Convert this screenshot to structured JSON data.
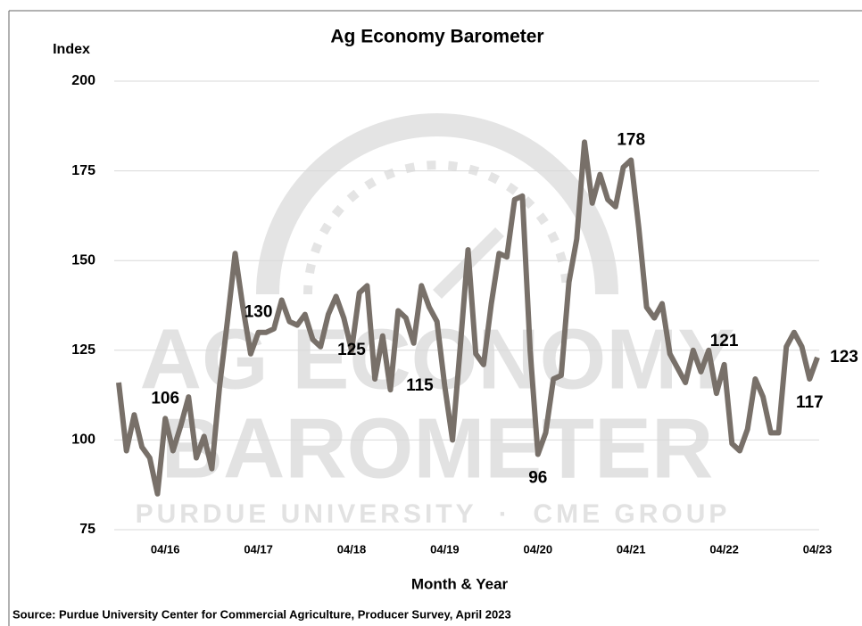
{
  "chart_data": {
    "type": "line",
    "title": "Ag Economy Barometer",
    "y_label": "Index",
    "x_label": "Month & Year",
    "source": "Source: Purdue University Center for Commercial Agriculture, Producer Survey, April 2023",
    "watermark": [
      "AG ECONOMY",
      "BAROMETER",
      "PURDUE UNIVERSITY  ·  CME GROUP"
    ],
    "categories": [
      null,
      null,
      null,
      null,
      null,
      null,
      "04/16",
      null,
      null,
      null,
      null,
      null,
      null,
      null,
      null,
      null,
      null,
      null,
      "04/17",
      null,
      null,
      null,
      null,
      null,
      null,
      null,
      null,
      null,
      null,
      null,
      "04/18",
      null,
      null,
      null,
      null,
      null,
      null,
      null,
      null,
      null,
      null,
      null,
      "04/19",
      null,
      null,
      null,
      null,
      null,
      null,
      null,
      null,
      null,
      null,
      null,
      "04/20",
      null,
      null,
      null,
      null,
      null,
      null,
      null,
      null,
      null,
      null,
      null,
      "04/21",
      null,
      null,
      null,
      null,
      null,
      null,
      null,
      null,
      null,
      null,
      null,
      "04/22",
      null,
      null,
      null,
      null,
      null,
      null,
      null,
      null,
      null,
      null,
      null,
      "04/23"
    ],
    "values": [
      116,
      97,
      107,
      98,
      95,
      85,
      106,
      97,
      104,
      112,
      95,
      101,
      92,
      115,
      133,
      152,
      137,
      124,
      130,
      130,
      131,
      139,
      133,
      132,
      135,
      128,
      126,
      135,
      140,
      134,
      125,
      141,
      143,
      117,
      129,
      114,
      136,
      134,
      127,
      143,
      137,
      133,
      115,
      100,
      126,
      153,
      124,
      121,
      138,
      152,
      151,
      167,
      168,
      125,
      96,
      102,
      117,
      118,
      144,
      156,
      183,
      166,
      174,
      167,
      165,
      176,
      178,
      159,
      137,
      134,
      138,
      124,
      120,
      116,
      125,
      119,
      125,
      113,
      121,
      99,
      97,
      103,
      117,
      112,
      102,
      102,
      126,
      130,
      126,
      117,
      123
    ],
    "labeled_points": [
      6,
      18,
      30,
      42,
      54,
      66,
      78,
      89,
      90
    ],
    "color": "#787069",
    "ylim": [
      75,
      200
    ],
    "yticks": [
      75,
      100,
      125,
      150,
      175,
      200
    ],
    "grid": true
  }
}
